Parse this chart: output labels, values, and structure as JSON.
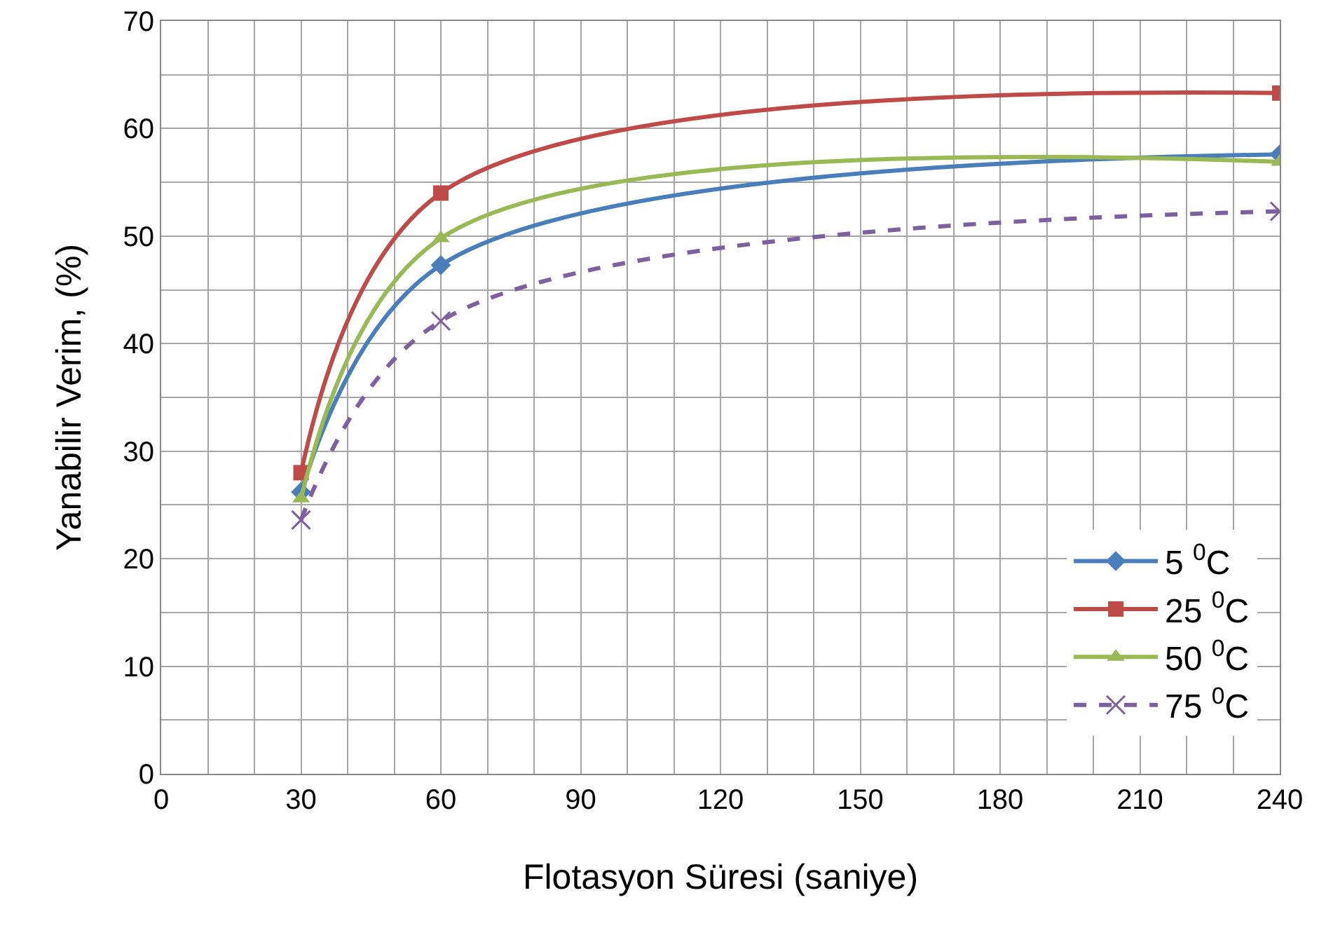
{
  "chart_data": {
    "type": "line",
    "xlabel": "Flotasyon Süresi (saniye)",
    "ylabel": "Yanabilir Verim, (%)",
    "x": [
      30,
      60,
      240
    ],
    "series": [
      {
        "name": "5 $^{0}$C",
        "color": "#4a7ebb",
        "marker": "diamond",
        "line_style": "solid",
        "values": [
          26.2,
          47.3,
          57.6
        ]
      },
      {
        "name": "25 $^{0}$C",
        "color": "#be4b48",
        "marker": "square",
        "line_style": "solid",
        "values": [
          28.0,
          54.0,
          63.3
        ]
      },
      {
        "name": "50 $^{0}$C",
        "color": "#98b954",
        "marker": "triangle",
        "line_style": "solid",
        "values": [
          25.6,
          49.8,
          56.9
        ]
      },
      {
        "name": "75 $^{0}$C",
        "color": "#7d60a0",
        "marker": "cross",
        "line_style": "dashed",
        "values": [
          23.6,
          42.1,
          52.3
        ]
      }
    ],
    "xlim": [
      0,
      240
    ],
    "xticks": [
      0,
      {
        "value": 10,
        "label": null
      },
      {
        "value": 20,
        "label": null
      },
      30,
      {
        "value": 40,
        "label": null
      },
      {
        "value": 50,
        "label": null
      },
      60,
      {
        "value": 70,
        "label": null
      },
      {
        "value": 80,
        "label": null
      },
      90,
      {
        "value": 100,
        "label": null
      },
      {
        "value": 110,
        "label": null
      },
      120,
      {
        "value": 130,
        "label": null
      },
      {
        "value": 140,
        "label": null
      },
      150,
      {
        "value": 160,
        "label": null
      },
      {
        "value": 170,
        "label": null
      },
      180,
      {
        "value": 190,
        "label": null
      },
      {
        "value": 200,
        "label": null
      },
      210,
      {
        "value": 220,
        "label": null
      },
      {
        "value": 230,
        "label": null
      },
      240
    ],
    "ylim": [
      0,
      70
    ],
    "yticks": [
      0,
      {
        "value": 5,
        "label": null
      },
      10,
      {
        "value": 15,
        "label": null
      },
      20,
      {
        "value": 25,
        "label": null
      },
      30,
      {
        "value": 35,
        "label": null
      },
      40,
      {
        "value": 45,
        "label": null
      },
      50,
      {
        "value": 55,
        "label": null
      },
      60,
      {
        "value": 65,
        "label": null
      },
      70
    ],
    "grid": true,
    "legend": "bottom right"
  }
}
